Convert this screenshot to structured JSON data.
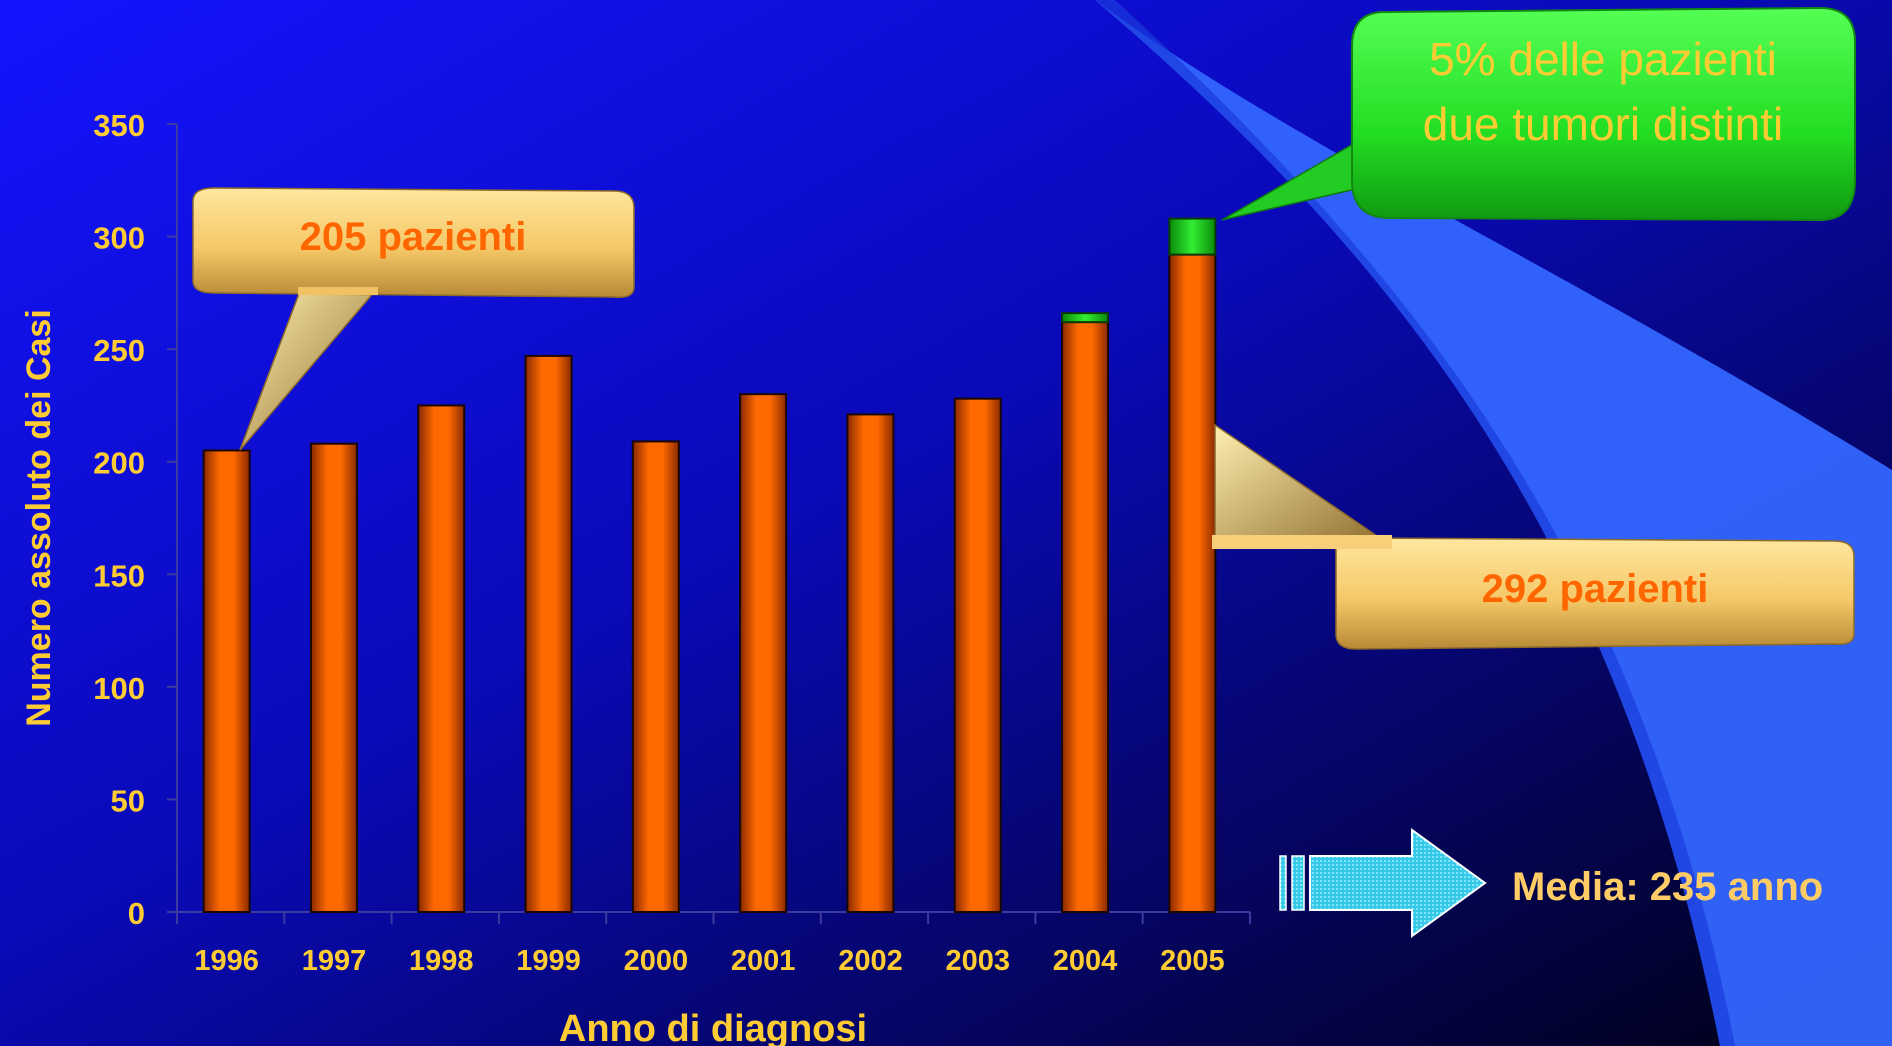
{
  "chart_data": {
    "type": "bar",
    "xlabel": "Anno di diagnosi",
    "ylabel": "Numero assoluto dei Casi",
    "ylim": [
      0,
      350
    ],
    "yticks": [
      0,
      50,
      100,
      150,
      200,
      250,
      300,
      350
    ],
    "categories": [
      "1996",
      "1997",
      "1998",
      "1999",
      "2000",
      "2001",
      "2002",
      "2003",
      "2004",
      "2005"
    ],
    "stacked": true,
    "series": [
      {
        "values": [
          205,
          208,
          225,
          247,
          209,
          230,
          221,
          228,
          262,
          292
        ]
      },
      {
        "values": [
          0,
          0,
          0,
          0,
          0,
          0,
          0,
          0,
          4,
          16
        ]
      }
    ],
    "grid": false,
    "legend": "none"
  },
  "callouts": {
    "first_year": "205 pazienti",
    "last_year": "292 pazienti",
    "two_tumors_line1": "5% delle pazienti",
    "two_tumors_line2": "due tumori distinti"
  },
  "footer_note": "Media: 235 anno",
  "colors": {
    "main_bar": "#ff6600",
    "second_tumor_bar": "#22dd22",
    "axis_text": "#ffcc33",
    "callout_text": "#ff6600",
    "background_top": "#1a1aff",
    "background_bottom": "#000033",
    "swoosh": "#3366ff"
  },
  "icons": {
    "arrow": "right-arrow-icon"
  }
}
